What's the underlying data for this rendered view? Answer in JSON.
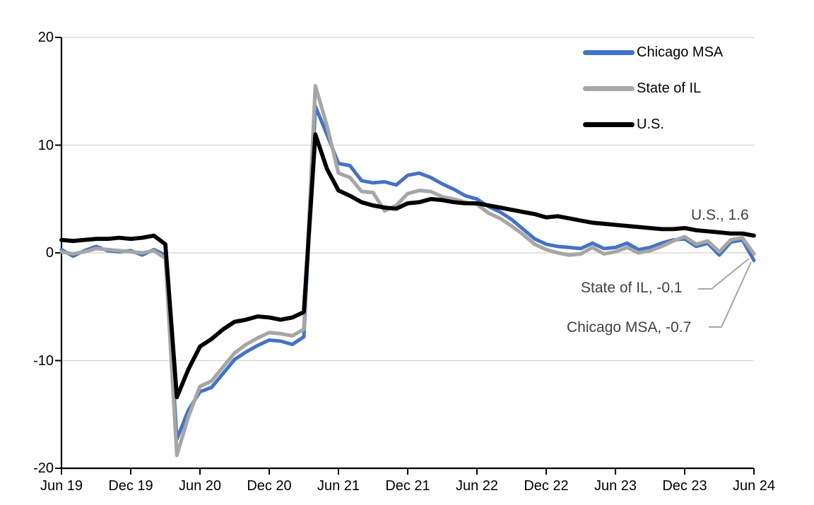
{
  "colors": {
    "chicago_blue": "#4472C4",
    "il_gray": "#A6A6A6",
    "us_black": "#000000",
    "gridline": "#D9D9D9",
    "axis": "#000000",
    "leader_line": "#A6A6A6",
    "annotation_text": "#404040"
  },
  "annotations": {
    "us": "U.S., 1.6",
    "il": "State of IL, -0.1",
    "chicago": "Chicago MSA, -0.7"
  },
  "chart_data": {
    "type": "line",
    "title": "",
    "xlabel": "",
    "ylabel": "",
    "x_frequency": "monthly, Jun 2019 through Jun 2024",
    "x_tick_labels": [
      "Jun 19",
      "Dec 19",
      "Jun 20",
      "Dec 20",
      "Jun 21",
      "Dec 21",
      "Jun 22",
      "Dec 22",
      "Jun 23",
      "Dec 23",
      "Jun 24"
    ],
    "y_ticks": [
      20,
      10,
      0,
      -10,
      -20
    ],
    "y_tick_labels": [
      "20",
      "10",
      "0",
      "-10",
      "-20"
    ],
    "gridline_values": [
      20,
      10,
      0,
      -10
    ],
    "ylim": [
      -20,
      20
    ],
    "grid": true,
    "legend_position": "top-right-inside",
    "series": [
      {
        "name": "Chicago MSA",
        "color": "#4472C4",
        "end_value": -0.7,
        "values": [
          0.3,
          -0.3,
          0.2,
          0.6,
          0.2,
          0.1,
          0.2,
          -0.2,
          0.3,
          -0.2,
          -17.3,
          -14.6,
          -12.9,
          -12.5,
          -11.2,
          -9.9,
          -9.2,
          -8.6,
          -8.1,
          -8.2,
          -8.5,
          -7.8,
          13.6,
          11.0,
          8.3,
          8.1,
          6.7,
          6.5,
          6.6,
          6.3,
          7.2,
          7.4,
          7.0,
          6.4,
          5.9,
          5.3,
          5.0,
          4.3,
          3.8,
          3.1,
          2.2,
          1.3,
          0.8,
          0.6,
          0.5,
          0.4,
          0.9,
          0.4,
          0.5,
          0.9,
          0.3,
          0.5,
          0.9,
          1.2,
          1.3,
          0.6,
          0.9,
          -0.2,
          1.0,
          1.2,
          -0.7
        ]
      },
      {
        "name": "State of IL",
        "color": "#A6A6A6",
        "end_value": -0.1,
        "values": [
          0.1,
          -0.1,
          0.1,
          0.4,
          0.3,
          0.2,
          0.1,
          0.0,
          0.2,
          -0.5,
          -18.8,
          -15.2,
          -12.4,
          -11.9,
          -10.6,
          -9.3,
          -8.5,
          -7.9,
          -7.4,
          -7.5,
          -7.7,
          -7.1,
          15.5,
          11.8,
          7.4,
          7.0,
          5.7,
          5.6,
          3.9,
          4.4,
          5.5,
          5.8,
          5.7,
          5.2,
          5.0,
          4.7,
          4.5,
          3.7,
          3.2,
          2.5,
          1.7,
          0.8,
          0.3,
          0.0,
          -0.2,
          -0.1,
          0.5,
          -0.1,
          0.1,
          0.5,
          0.0,
          0.2,
          0.6,
          1.1,
          1.5,
          0.8,
          1.1,
          0.1,
          1.2,
          1.4,
          -0.1
        ]
      },
      {
        "name": "U.S.",
        "color": "#000000",
        "end_value": 1.6,
        "values": [
          1.2,
          1.1,
          1.2,
          1.3,
          1.3,
          1.4,
          1.3,
          1.4,
          1.6,
          0.8,
          -13.4,
          -10.8,
          -8.7,
          -8.0,
          -7.1,
          -6.4,
          -6.2,
          -5.9,
          -6.0,
          -6.2,
          -6.0,
          -5.5,
          11.0,
          7.8,
          5.8,
          5.3,
          4.7,
          4.4,
          4.2,
          4.1,
          4.6,
          4.7,
          5.0,
          4.9,
          4.7,
          4.6,
          4.6,
          4.4,
          4.2,
          4.0,
          3.8,
          3.6,
          3.3,
          3.4,
          3.2,
          3.0,
          2.8,
          2.7,
          2.6,
          2.5,
          2.4,
          2.3,
          2.2,
          2.2,
          2.3,
          2.1,
          2.0,
          1.9,
          1.8,
          1.8,
          1.6
        ]
      }
    ]
  }
}
